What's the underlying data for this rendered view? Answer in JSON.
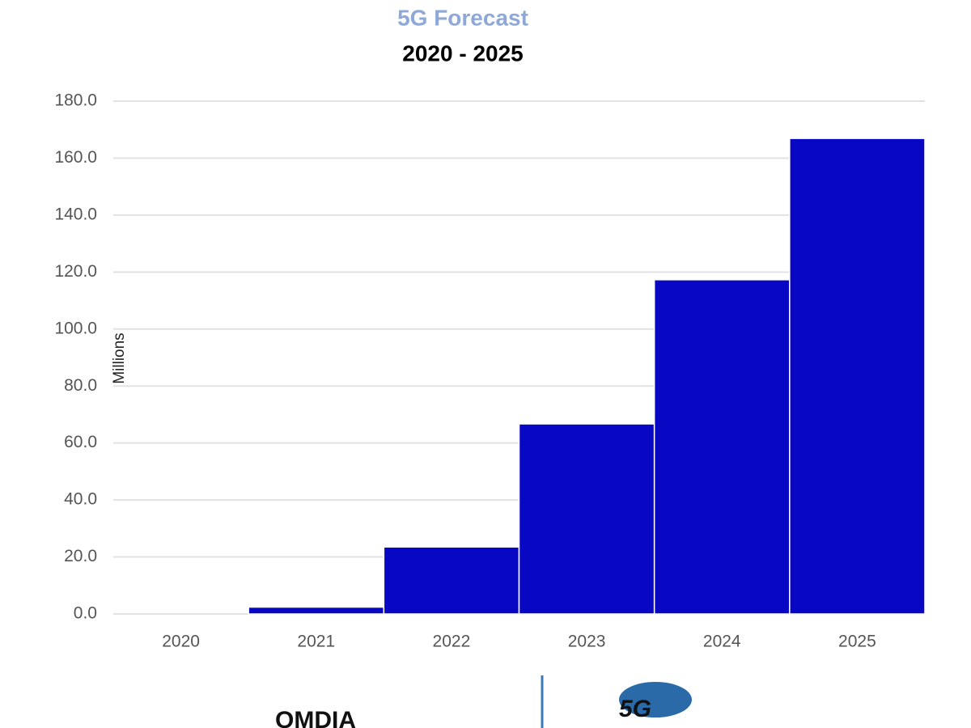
{
  "chart_data": {
    "type": "bar",
    "title": "5G Forecast",
    "subtitle": "2020 - 2025",
    "y_label": "Millions",
    "source": "OMDIA",
    "categories": [
      "2020",
      "2021",
      "2022",
      "2023",
      "2024",
      "2025"
    ],
    "values": [
      0,
      2.4,
      23.5,
      66.7,
      117.3,
      166.9
    ],
    "color": "#0808c4",
    "ylim": [
      0,
      180
    ],
    "yticks": [
      {
        "value": 0,
        "label": "0.0"
      },
      {
        "value": 20,
        "label": "20.0"
      },
      {
        "value": 40,
        "label": "40.0"
      },
      {
        "value": 60,
        "label": "60.0"
      },
      {
        "value": 80,
        "label": "80.0"
      },
      {
        "value": 100,
        "label": "100.0"
      },
      {
        "value": 120,
        "label": "120.0"
      },
      {
        "value": 140,
        "label": "140.0"
      },
      {
        "value": 160,
        "label": "160.0"
      },
      {
        "value": 180,
        "label": "180.0"
      }
    ],
    "grid": true
  }
}
